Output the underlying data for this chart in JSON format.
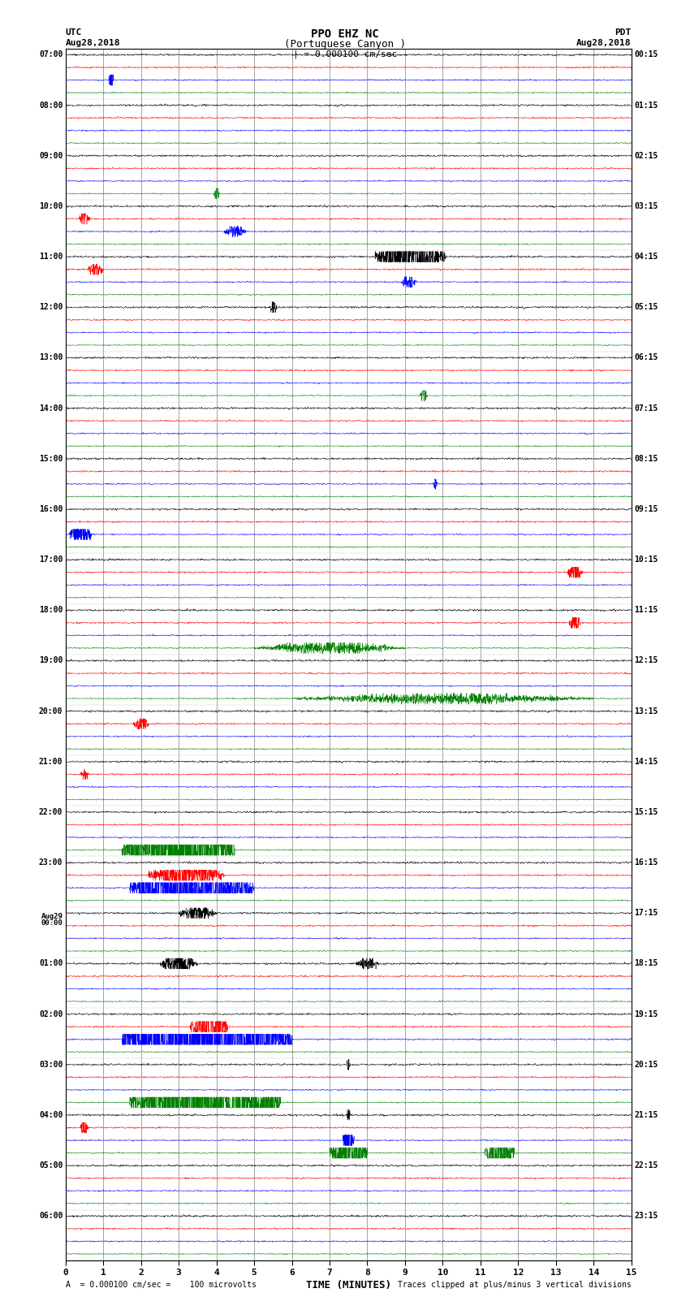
{
  "title_line1": "PPO EHZ NC",
  "title_line2": "(Portuguese Canyon )",
  "scale_label": "| = 0.000100 cm/sec",
  "utc_label1": "UTC",
  "utc_label2": "Aug28,2018",
  "pdt_label1": "PDT",
  "pdt_label2": "Aug28,2018",
  "footer_left": "A  = 0.000100 cm/sec =    100 microvolts",
  "footer_right": "Traces clipped at plus/minus 3 vertical divisions",
  "xlabel": "TIME (MINUTES)",
  "xmin": 0,
  "xmax": 15,
  "xticks": [
    0,
    1,
    2,
    3,
    4,
    5,
    6,
    7,
    8,
    9,
    10,
    11,
    12,
    13,
    14,
    15
  ],
  "bg_color": "#ffffff",
  "plot_bg_color": "#ffffff",
  "trace_colors": [
    "black",
    "red",
    "blue",
    "green"
  ],
  "left_labels": [
    "07:00",
    "08:00",
    "09:00",
    "10:00",
    "11:00",
    "12:00",
    "13:00",
    "14:00",
    "15:00",
    "16:00",
    "17:00",
    "18:00",
    "19:00",
    "20:00",
    "21:00",
    "22:00",
    "23:00",
    "Aug29\n00:00",
    "01:00",
    "02:00",
    "03:00",
    "04:00",
    "05:00",
    "06:00"
  ],
  "right_labels": [
    "00:15",
    "01:15",
    "02:15",
    "03:15",
    "04:15",
    "05:15",
    "06:15",
    "07:15",
    "08:15",
    "09:15",
    "10:15",
    "11:15",
    "12:15",
    "13:15",
    "14:15",
    "15:15",
    "16:15",
    "17:15",
    "18:15",
    "19:15",
    "20:15",
    "21:15",
    "22:15",
    "23:15"
  ],
  "n_hours": 24,
  "traces_per_hour": 4,
  "noise_base": 0.06,
  "clip_val": 0.42,
  "seed": 1234
}
